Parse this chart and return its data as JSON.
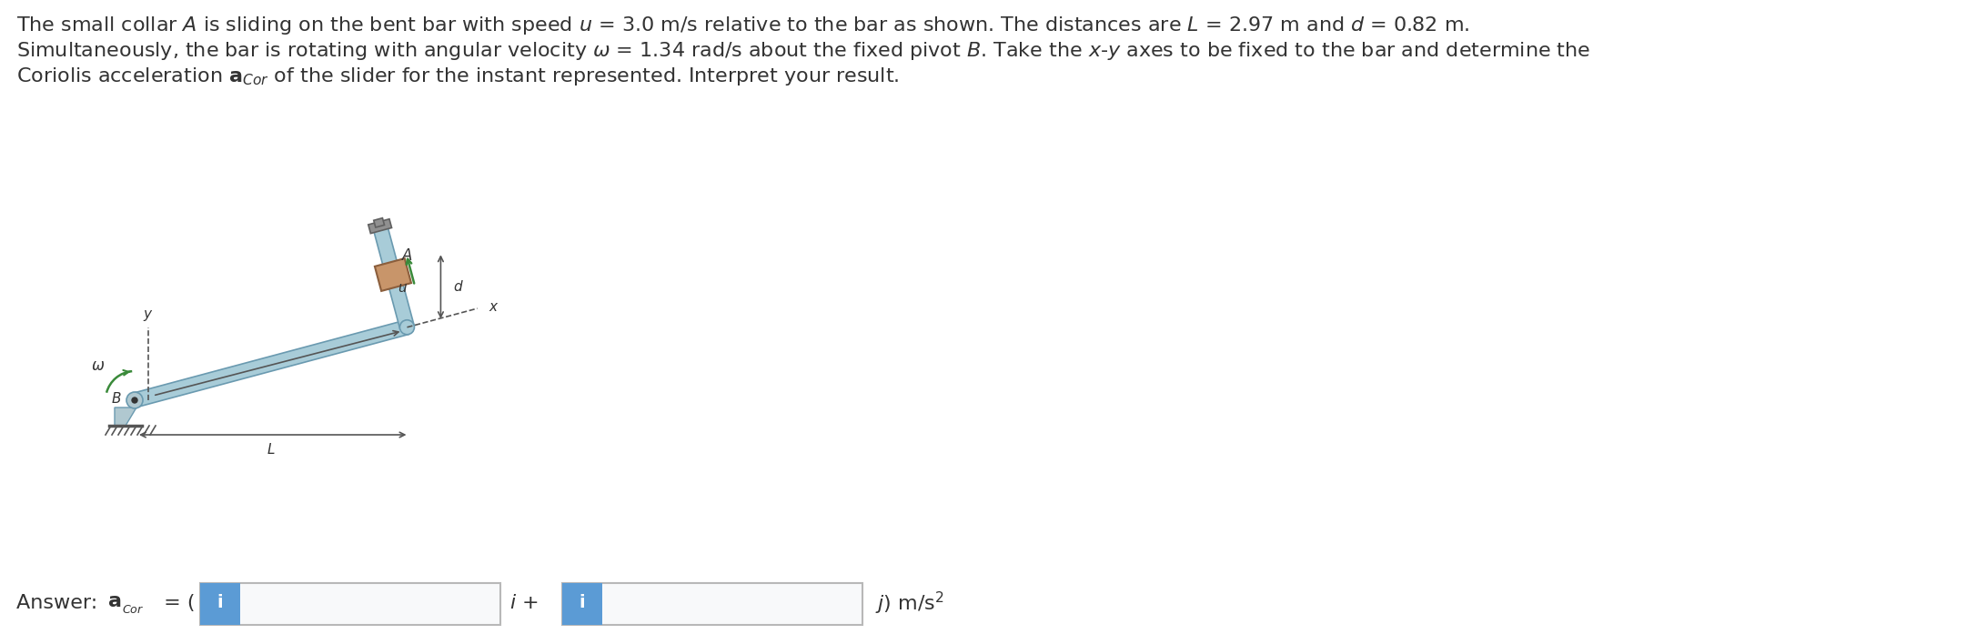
{
  "bg_color": "#ffffff",
  "text_color": "#2c3e6b",
  "text_color2": "#333333",
  "input_box_color": "#5b9bd5",
  "input_box_light": "#f5f8fc",
  "input_box_border": "#b8b8b8",
  "bar_color": "#a8ccd8",
  "bar_edge": "#6a9ab0",
  "collar_color": "#c8956a",
  "collar_edge": "#8b5e3c",
  "ground_color": "#888888",
  "green_color": "#3a8a3a",
  "dim_color": "#555555",
  "line1": "The small collar A is sliding on the bent bar with speed u = 3.0 m/s relative to the bar as shown. The distances are L = 2.97 m and d = 0.82 m.",
  "line2": "Simultaneously, the bar is rotating with angular velocity ω = 1.34 rad/s about the fixed pivot B. Take the x-y axes to be fixed to the bar and determine the",
  "line3": "Coriolis acceleration aCor of the slider for the instant represented. Interpret your result.",
  "fig_width": 21.72,
  "fig_height": 7.08,
  "dpi": 100,
  "ans_text_fontsize": 16,
  "body_fontsize": 16
}
